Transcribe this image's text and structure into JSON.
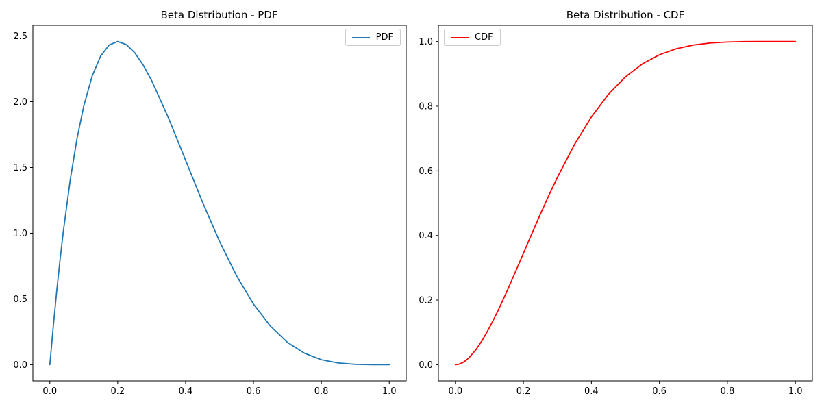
{
  "figure": {
    "background": "#ffffff",
    "frame_color": "#000000",
    "text_color": "#000000"
  },
  "chart_data": [
    {
      "type": "line",
      "title": "Beta Distribution - PDF",
      "xlabel": "",
      "ylabel": "",
      "xlim": [
        -0.05,
        1.05
      ],
      "ylim": [
        -0.123,
        2.581
      ],
      "xticks": [
        0.0,
        0.2,
        0.4,
        0.6,
        0.8,
        1.0
      ],
      "yticks": [
        0.0,
        0.5,
        1.0,
        1.5,
        2.0,
        2.5
      ],
      "grid": false,
      "legend": {
        "position": "upper-right",
        "labels": [
          "PDF"
        ]
      },
      "x": [
        0,
        0.01,
        0.02,
        0.03,
        0.04,
        0.06,
        0.08,
        0.1,
        0.125,
        0.15,
        0.175,
        0.2,
        0.225,
        0.25,
        0.275,
        0.3,
        0.35,
        0.4,
        0.45,
        0.5,
        0.55,
        0.6,
        0.65,
        0.7,
        0.75,
        0.8,
        0.85,
        0.9,
        0.95,
        1.0
      ],
      "series": [
        {
          "name": "PDF",
          "color": "#1f77b4",
          "values": [
            0,
            0.288,
            0.553,
            0.797,
            1.019,
            1.405,
            1.719,
            1.968,
            2.198,
            2.349,
            2.432,
            2.458,
            2.435,
            2.373,
            2.279,
            2.161,
            1.874,
            1.555,
            1.235,
            0.938,
            0.677,
            0.461,
            0.293,
            0.17,
            0.088,
            0.038,
            0.013,
            0.003,
            0.0002,
            0
          ]
        }
      ]
    },
    {
      "type": "line",
      "title": "Beta Distribution - CDF",
      "xlabel": "",
      "ylabel": "",
      "xlim": [
        -0.05,
        1.05
      ],
      "ylim": [
        -0.05,
        1.05
      ],
      "xticks": [
        0.0,
        0.2,
        0.4,
        0.6,
        0.8,
        1.0
      ],
      "yticks": [
        0.0,
        0.2,
        0.4,
        0.6,
        0.8,
        1.0
      ],
      "grid": false,
      "legend": {
        "position": "upper-left",
        "labels": [
          "CDF"
        ]
      },
      "x": [
        0,
        0.01,
        0.02,
        0.03,
        0.04,
        0.06,
        0.08,
        0.1,
        0.125,
        0.15,
        0.175,
        0.2,
        0.225,
        0.25,
        0.275,
        0.3,
        0.35,
        0.4,
        0.45,
        0.5,
        0.55,
        0.6,
        0.65,
        0.7,
        0.75,
        0.8,
        0.85,
        0.9,
        0.95,
        1.0
      ],
      "series": [
        {
          "name": "CDF",
          "color": "#ff0000",
          "values": [
            0,
            0.0015,
            0.0057,
            0.0125,
            0.0216,
            0.0459,
            0.0773,
            0.1143,
            0.1665,
            0.2235,
            0.2834,
            0.3446,
            0.4059,
            0.4661,
            0.5243,
            0.5798,
            0.6809,
            0.7667,
            0.8364,
            0.8906,
            0.9308,
            0.959,
            0.9777,
            0.9891,
            0.9954,
            0.9984,
            0.9996,
            0.9999,
            1.0,
            1.0
          ]
        }
      ]
    }
  ]
}
